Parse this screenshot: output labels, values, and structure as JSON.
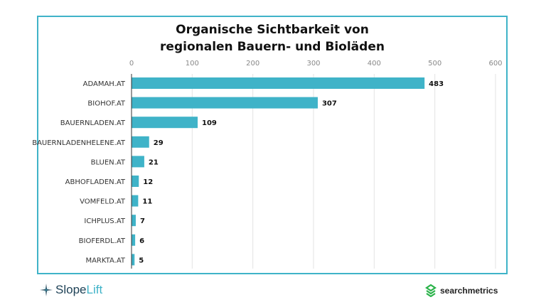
{
  "chart_data": {
    "type": "bar",
    "orientation": "horizontal",
    "title": "Organische Sichtbarkeit von regionalen Bauern- und Bioläden",
    "title_lines": [
      "Organische Sichtbarkeit von",
      "regionalen Bauern- und Bioläden"
    ],
    "categories": [
      "ADAMAH.AT",
      "BIOHOF.AT",
      "BAUERNLADEN.AT",
      "BAUERNLADENHELENE.AT",
      "BLUEN.AT",
      "ABHOFLADEN.AT",
      "VOMFELD.AT",
      "ICHPLUS.AT",
      "BIOFERDL.AT",
      "MARKTA.AT"
    ],
    "values": [
      483,
      307,
      109,
      29,
      21,
      12,
      11,
      7,
      6,
      5
    ],
    "xlim": [
      0,
      600
    ],
    "ticks": [
      0,
      100,
      200,
      300,
      400,
      500,
      600
    ],
    "tick_position": "top",
    "grid": true,
    "bar_color": "#3fb3c8"
  },
  "branding": {
    "left": "SlopeLift",
    "left_a": "Slope",
    "left_b": "Lift",
    "right": "searchmetrics"
  },
  "colors": {
    "frame": "#3fb3c8",
    "slopelift_dark": "#1f4257",
    "searchmetrics_green": "#2bb34a"
  }
}
